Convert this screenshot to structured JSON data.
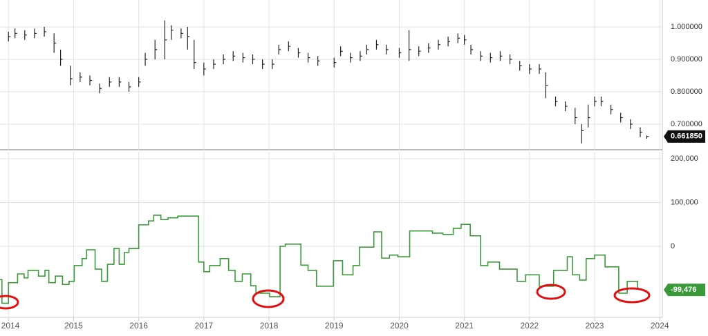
{
  "chart_data": [
    {
      "type": "ohlc",
      "color": "#222222",
      "x": [
        2014.0,
        2014.1,
        2014.25,
        2014.4,
        2014.55,
        2014.7,
        2014.8,
        2014.95,
        2015.1,
        2015.25,
        2015.4,
        2015.55,
        2015.7,
        2015.85,
        2016.0,
        2016.1,
        2016.25,
        2016.4,
        2016.5,
        2016.65,
        2016.75,
        2016.85,
        2017.0,
        2017.15,
        2017.3,
        2017.45,
        2017.6,
        2017.75,
        2017.9,
        2018.05,
        2018.15,
        2018.3,
        2018.45,
        2018.6,
        2018.75,
        2019.0,
        2019.1,
        2019.25,
        2019.4,
        2019.5,
        2019.65,
        2019.8,
        2020.0,
        2020.15,
        2020.3,
        2020.45,
        2020.6,
        2020.75,
        2020.9,
        2021.0,
        2021.1,
        2021.25,
        2021.4,
        2021.55,
        2021.7,
        2021.85,
        2022.0,
        2022.15,
        2022.25,
        2022.4,
        2022.55,
        2022.7,
        2022.8,
        2022.9,
        2023.0,
        2023.1,
        2023.25,
        2023.4,
        2023.55,
        2023.7,
        2023.8
      ],
      "high": [
        0.985,
        0.995,
        0.99,
        0.995,
        1.0,
        0.98,
        0.93,
        0.88,
        0.86,
        0.85,
        0.825,
        0.845,
        0.845,
        0.83,
        0.845,
        0.92,
        0.96,
        1.02,
        1.005,
        0.995,
        1.0,
        0.96,
        0.89,
        0.9,
        0.915,
        0.925,
        0.92,
        0.915,
        0.9,
        0.9,
        0.945,
        0.955,
        0.935,
        0.92,
        0.91,
        0.905,
        0.94,
        0.92,
        0.925,
        0.945,
        0.96,
        0.945,
        0.935,
        0.99,
        0.94,
        0.95,
        0.96,
        0.97,
        0.98,
        0.975,
        0.945,
        0.925,
        0.92,
        0.925,
        0.915,
        0.895,
        0.885,
        0.885,
        0.86,
        0.785,
        0.77,
        0.75,
        0.7,
        0.76,
        0.785,
        0.785,
        0.76,
        0.735,
        0.715,
        0.69,
        0.665
      ],
      "low": [
        0.955,
        0.965,
        0.96,
        0.965,
        0.97,
        0.92,
        0.88,
        0.82,
        0.83,
        0.82,
        0.795,
        0.815,
        0.815,
        0.8,
        0.815,
        0.88,
        0.9,
        0.9,
        0.96,
        0.965,
        0.93,
        0.87,
        0.85,
        0.87,
        0.885,
        0.895,
        0.89,
        0.885,
        0.87,
        0.87,
        0.915,
        0.925,
        0.905,
        0.89,
        0.88,
        0.875,
        0.91,
        0.89,
        0.895,
        0.915,
        0.93,
        0.915,
        0.905,
        0.895,
        0.91,
        0.92,
        0.93,
        0.94,
        0.95,
        0.945,
        0.915,
        0.895,
        0.89,
        0.895,
        0.885,
        0.865,
        0.855,
        0.855,
        0.78,
        0.755,
        0.74,
        0.7,
        0.64,
        0.69,
        0.755,
        0.755,
        0.73,
        0.705,
        0.685,
        0.66,
        0.655
      ],
      "close": [
        0.97,
        0.98,
        0.975,
        0.98,
        0.985,
        0.95,
        0.9,
        0.84,
        0.845,
        0.835,
        0.81,
        0.83,
        0.83,
        0.815,
        0.83,
        0.9,
        0.93,
        0.96,
        0.99,
        0.98,
        0.97,
        0.89,
        0.87,
        0.885,
        0.9,
        0.91,
        0.905,
        0.9,
        0.885,
        0.885,
        0.93,
        0.94,
        0.92,
        0.905,
        0.895,
        0.89,
        0.925,
        0.905,
        0.91,
        0.93,
        0.945,
        0.93,
        0.92,
        0.93,
        0.925,
        0.935,
        0.945,
        0.955,
        0.965,
        0.96,
        0.93,
        0.91,
        0.905,
        0.91,
        0.9,
        0.88,
        0.87,
        0.87,
        0.82,
        0.77,
        0.755,
        0.72,
        0.68,
        0.72,
        0.77,
        0.77,
        0.745,
        0.72,
        0.7,
        0.675,
        0.66185
      ],
      "value_labels": [
        null,
        null,
        null,
        null,
        null,
        null,
        null,
        null,
        null,
        null,
        null,
        null,
        null,
        null,
        null,
        null,
        null,
        null,
        null,
        null,
        null,
        null,
        null,
        null,
        null,
        null,
        null,
        null,
        null,
        null,
        null,
        null,
        null,
        null,
        null,
        null,
        null,
        null,
        null,
        null,
        null,
        null,
        null,
        null,
        null,
        null,
        null,
        null,
        null,
        null,
        null,
        null,
        null,
        null,
        null,
        null,
        null,
        null,
        null,
        null,
        null,
        null,
        null,
        null,
        null,
        null,
        null,
        null,
        null,
        null,
        "0.661850"
      ],
      "xlim": [
        2013.87,
        2024.04
      ],
      "ylim": [
        0.621,
        1.083
      ],
      "yticks": [
        {
          "value": 0.7,
          "label": "0.700000"
        },
        {
          "value": 0.8,
          "label": "0.800000"
        },
        {
          "value": 0.9,
          "label": "0.900000"
        },
        {
          "value": 1.0,
          "label": "1.000000"
        }
      ],
      "grid": true
    },
    {
      "type": "step",
      "color": "#3a9a3a",
      "x": [
        2013.87,
        2013.9,
        2014.0,
        2014.14,
        2014.24,
        2014.3,
        2014.46,
        2014.56,
        2014.62,
        2014.72,
        2014.83,
        2014.93,
        2015.01,
        2015.13,
        2015.2,
        2015.33,
        2015.43,
        2015.52,
        2015.62,
        2015.7,
        2015.78,
        2015.85,
        2016.0,
        2016.15,
        2016.23,
        2016.34,
        2016.45,
        2016.6,
        2016.92,
        2017.0,
        2017.09,
        2017.25,
        2017.38,
        2017.48,
        2017.59,
        2017.72,
        2017.8,
        2018.01,
        2018.17,
        2018.25,
        2018.49,
        2018.6,
        2018.73,
        2018.99,
        2019.13,
        2019.29,
        2019.39,
        2019.61,
        2019.73,
        2019.85,
        2019.98,
        2020.16,
        2020.51,
        2020.67,
        2020.83,
        2020.95,
        2021.09,
        2021.25,
        2021.36,
        2021.54,
        2021.81,
        2021.94,
        2022.15,
        2022.37,
        2022.58,
        2022.66,
        2022.77,
        2022.87,
        2023.0,
        2023.16,
        2023.37,
        2023.5,
        2023.66
      ],
      "values": [
        -76000,
        -130000,
        -83000,
        -63000,
        -72000,
        -55000,
        -68000,
        -55000,
        -83000,
        -68000,
        -87000,
        -80000,
        -44000,
        -28000,
        -8000,
        -52000,
        -80000,
        -41000,
        -5000,
        -41000,
        -14000,
        -5000,
        49000,
        58000,
        71000,
        61000,
        65000,
        69000,
        -36000,
        -58000,
        -44000,
        -28000,
        -55000,
        -80000,
        -63000,
        -90000,
        -107000,
        -115000,
        0,
        5000,
        -43000,
        -55000,
        -91000,
        -33000,
        -65000,
        -44000,
        -2000,
        33000,
        -27000,
        -20000,
        -24000,
        35000,
        30000,
        27000,
        41000,
        50000,
        24000,
        -44000,
        -36000,
        -52000,
        -80000,
        -65000,
        -91000,
        -55000,
        -24000,
        -65000,
        -77000,
        -28000,
        -20000,
        -47000,
        -107000,
        -80000,
        -99476
      ],
      "value_labels": [
        null,
        null,
        null,
        null,
        null,
        null,
        null,
        null,
        null,
        null,
        null,
        null,
        null,
        null,
        null,
        null,
        null,
        null,
        null,
        null,
        null,
        null,
        null,
        null,
        null,
        null,
        null,
        null,
        null,
        null,
        null,
        null,
        null,
        null,
        null,
        null,
        null,
        null,
        null,
        null,
        null,
        null,
        null,
        null,
        null,
        null,
        null,
        null,
        null,
        null,
        null,
        null,
        null,
        null,
        null,
        null,
        null,
        null,
        null,
        null,
        null,
        null,
        null,
        null,
        null,
        null,
        null,
        null,
        null,
        null,
        null,
        null,
        "-99,476"
      ],
      "xlim": [
        2013.87,
        2024.04
      ],
      "xticks": [
        2014,
        2015,
        2016,
        2017,
        2018,
        2019,
        2020,
        2021,
        2022,
        2023,
        2024
      ],
      "ylim": [
        -162200,
        215700
      ],
      "yticks": [
        0,
        {
          "value": 100000,
          "label": "100,000"
        },
        {
          "value": 200000,
          "label": "200,000"
        }
      ],
      "grid": true
    }
  ]
}
